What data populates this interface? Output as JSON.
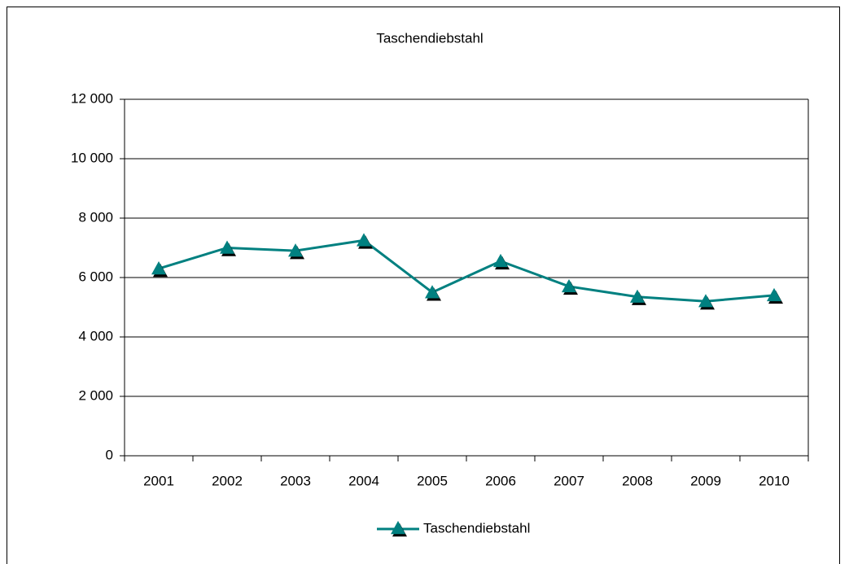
{
  "chart_data": {
    "type": "line",
    "title": "Taschendiebstahl",
    "categories": [
      "2001",
      "2002",
      "2003",
      "2004",
      "2005",
      "2006",
      "2007",
      "2008",
      "2009",
      "2010"
    ],
    "series": [
      {
        "name": "Taschendiebstahl",
        "color": "#008080",
        "values": [
          6300,
          7000,
          6900,
          7250,
          5500,
          6550,
          5700,
          5350,
          5200,
          5400
        ]
      }
    ],
    "ylim": [
      0,
      12000
    ],
    "yticks": [
      0,
      {
        "value": 2000,
        "label": "2 000"
      },
      {
        "value": 4000,
        "label": "4 000"
      },
      {
        "value": 6000,
        "label": "6 000"
      },
      {
        "value": 8000,
        "label": "8 000"
      },
      {
        "value": 10000,
        "label": "10 000"
      },
      {
        "value": 12000,
        "label": "12 000"
      }
    ],
    "grid": true,
    "legend": "bottom"
  }
}
